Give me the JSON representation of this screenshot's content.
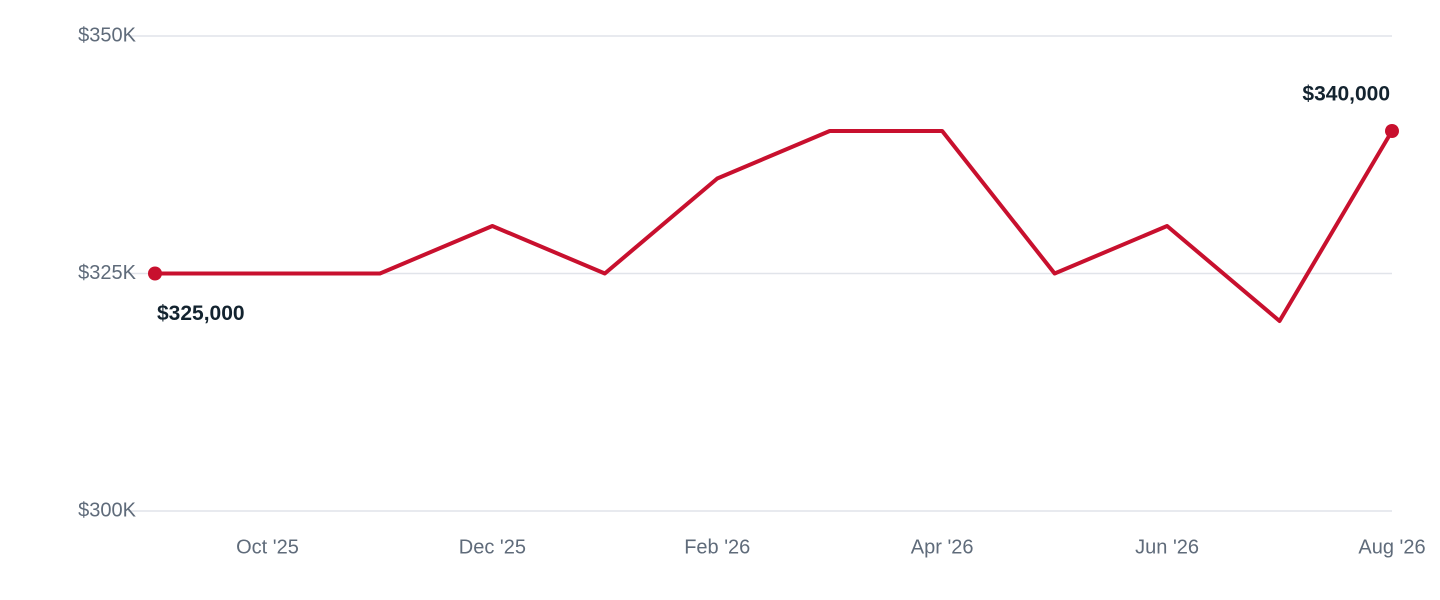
{
  "chart_data": {
    "type": "line",
    "categories": [
      null,
      "Oct '25",
      null,
      "Dec '25",
      null,
      "Feb '26",
      null,
      "Apr '26",
      null,
      "Jun '26",
      null,
      "Aug '26"
    ],
    "series": [
      {
        "color": "#c8102e",
        "values": [
          325000,
          325000,
          325000,
          330000,
          325000,
          335000,
          340000,
          340000,
          325000,
          330000,
          320000,
          340000
        ],
        "value_labels": [
          "$325,000",
          null,
          null,
          null,
          null,
          null,
          null,
          null,
          null,
          null,
          null,
          "$340,000"
        ]
      }
    ],
    "ylim": [
      300000,
      350000
    ],
    "yticks": [
      {
        "value": 300000,
        "label": "$300K"
      },
      {
        "value": 325000,
        "label": "$325K"
      },
      {
        "value": 350000,
        "label": "$350K"
      }
    ],
    "grid": true
  }
}
